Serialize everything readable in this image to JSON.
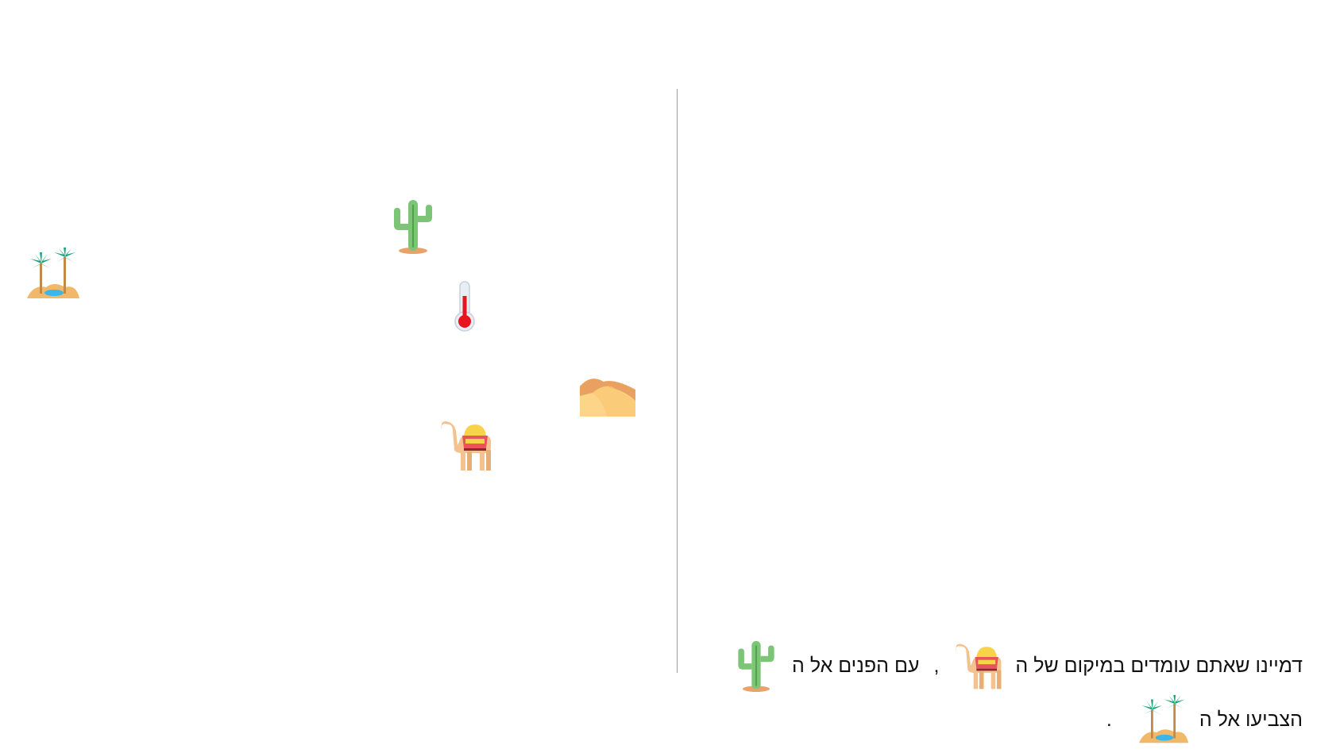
{
  "map": {
    "icons": [
      {
        "name": "oasis-icon",
        "label": "oasis"
      },
      {
        "name": "cactus-icon",
        "label": "cactus"
      },
      {
        "name": "thermometer-icon",
        "label": "thermometer"
      },
      {
        "name": "dunes-icon",
        "label": "sand dunes"
      },
      {
        "name": "camel-icon",
        "label": "camel"
      }
    ]
  },
  "instructions": {
    "line1": {
      "part1": "דמיינו שאתם עומדים במיקום של ה",
      "comma": ",",
      "part2": "עם הפנים אל ה"
    },
    "line2": {
      "part1": "הצביעו אל ה",
      "period": "."
    }
  },
  "colors": {
    "divider": "#9a9a9a",
    "text": "#111111",
    "cactus": "#7cc576",
    "camel": "#f4c28e",
    "sand": "#f2b86a",
    "palm": "#1aa37a",
    "thermometer_red": "#e8141e"
  }
}
